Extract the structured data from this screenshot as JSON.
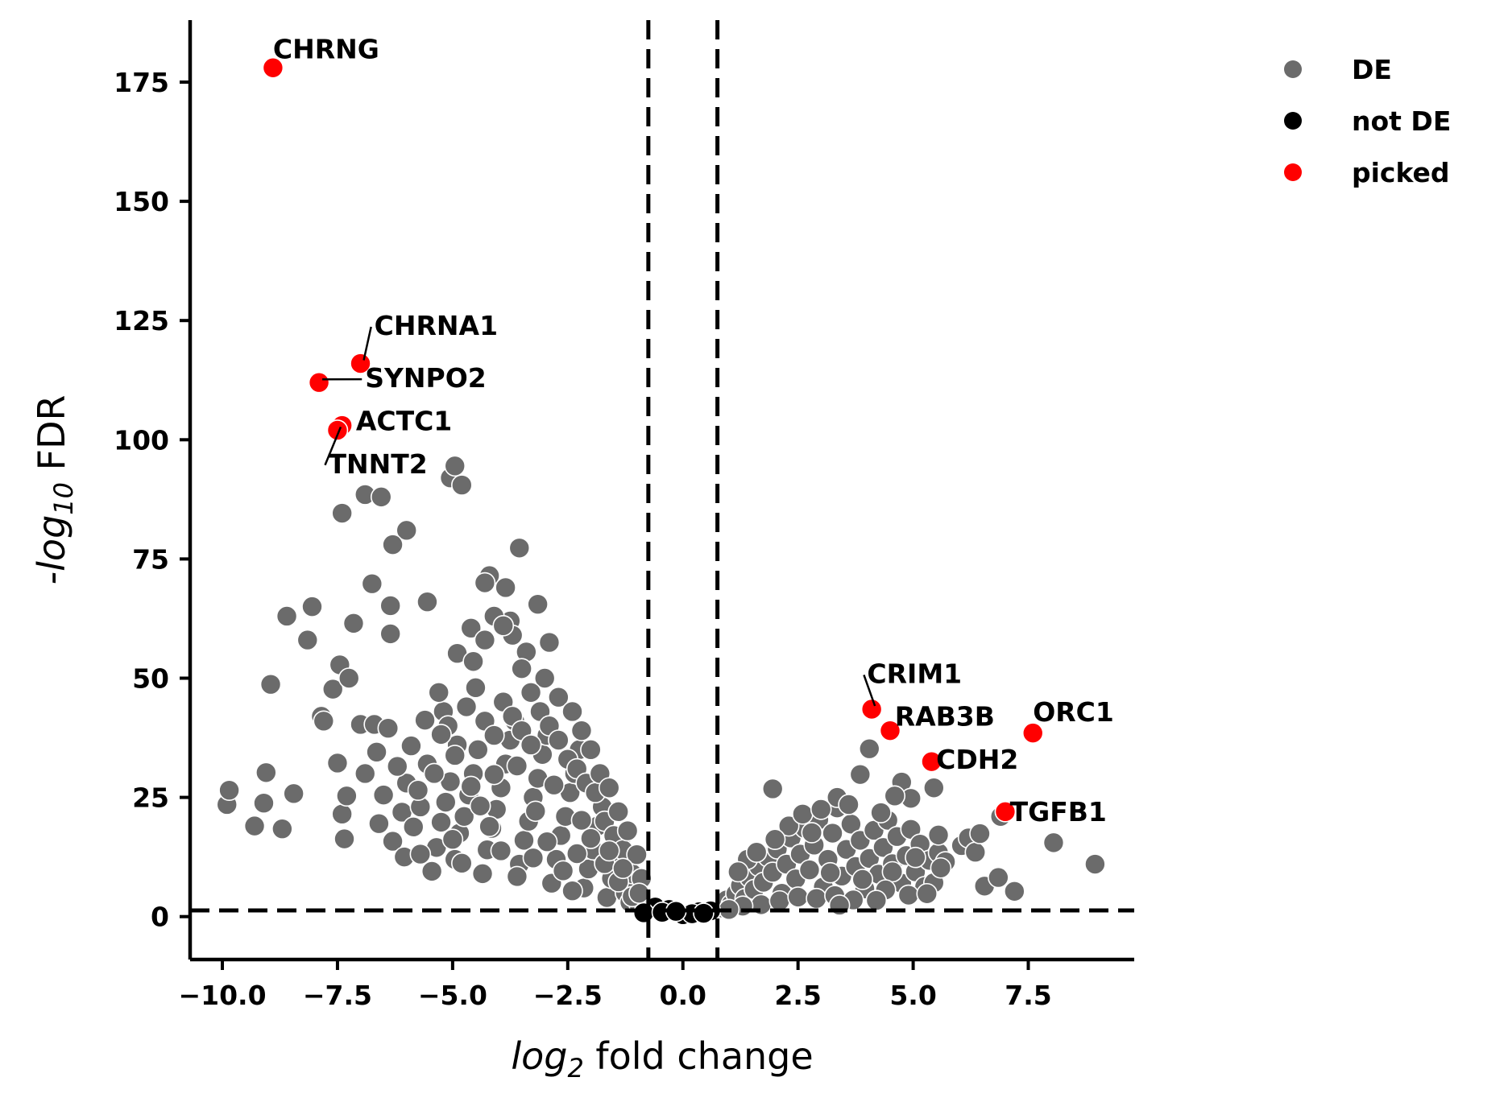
{
  "chart_data": {
    "type": "scatter",
    "title": "",
    "xlabel": {
      "prefix": "log",
      "sub": "2",
      "suffix": " fold change"
    },
    "ylabel": {
      "prefix": "-log",
      "sub": "10",
      "suffix": " FDR"
    },
    "xlim": [
      -10.7,
      9.8
    ],
    "ylim": [
      -9,
      188
    ],
    "x_ticks": [
      -10.0,
      -7.5,
      -5.0,
      -2.5,
      0.0,
      2.5,
      5.0,
      7.5
    ],
    "x_tick_labels": [
      "−10.0",
      "−7.5",
      "−5.0",
      "−2.5",
      "0.0",
      "2.5",
      "5.0",
      "7.5"
    ],
    "y_ticks": [
      0,
      25,
      50,
      75,
      100,
      125,
      150,
      175
    ],
    "y_tick_labels": [
      "0",
      "25",
      "50",
      "75",
      "100",
      "125",
      "150",
      "175"
    ],
    "thresholds": {
      "log2fc": [
        -0.75,
        0.75
      ],
      "neg_log10_fdr": 1.3
    },
    "grid": false,
    "legend_position": "top-right-outside",
    "legend": [
      {
        "label": "DE",
        "color": "#6b6b6b"
      },
      {
        "label": "not DE",
        "color": "#000000"
      },
      {
        "label": "picked",
        "color": "#ff0000"
      }
    ],
    "colors": {
      "DE": "#6b6b6b",
      "not_DE": "#000000",
      "picked": "#ff0000",
      "edge": "#ffffff"
    },
    "picked_genes": [
      {
        "gene": "CHRNG",
        "x": -8.9,
        "y": 178,
        "label_x": -8.9,
        "label_y": 180
      },
      {
        "gene": "CHRNA1",
        "x": -7.0,
        "y": 116,
        "label_x": -6.7,
        "label_y": 122
      },
      {
        "gene": "SYNPO2",
        "x": -7.9,
        "y": 112,
        "label_x": -6.9,
        "label_y": 111
      },
      {
        "gene": "ACTC1",
        "x": -7.4,
        "y": 103,
        "label_x": -7.1,
        "label_y": 102
      },
      {
        "gene": "TNNT2",
        "x": -7.5,
        "y": 102,
        "label_x": -7.7,
        "label_y": 93
      },
      {
        "gene": "CRIM1",
        "x": 4.1,
        "y": 43.5,
        "label_x": 4.0,
        "label_y": 49
      },
      {
        "gene": "RAB3B",
        "x": 4.5,
        "y": 39,
        "label_x": 4.6,
        "label_y": 40
      },
      {
        "gene": "ORC1",
        "x": 7.6,
        "y": 38.5,
        "label_x": 7.6,
        "label_y": 41
      },
      {
        "gene": "CDH2",
        "x": 5.4,
        "y": 32.5,
        "label_x": 5.5,
        "label_y": 31
      },
      {
        "gene": "TGFB1",
        "x": 7.0,
        "y": 22,
        "label_x": 7.1,
        "label_y": 20
      }
    ],
    "not_de_points": [
      [
        -0.6,
        2
      ],
      [
        -0.3,
        1.5
      ],
      [
        0.0,
        0.4
      ],
      [
        0.35,
        1.0
      ],
      [
        -0.85,
        0.8
      ],
      [
        0.6,
        1.2
      ],
      [
        -0.45,
        0.9
      ],
      [
        0.2,
        0.6
      ],
      [
        -0.15,
        1.1
      ],
      [
        0.45,
        0.7
      ]
    ],
    "de_points": [
      [
        -9.9,
        23.5
      ],
      [
        -9.85,
        26.5
      ],
      [
        -9.3,
        19
      ],
      [
        -9.1,
        23.8
      ],
      [
        -9.05,
        30.2
      ],
      [
        -8.7,
        18.4
      ],
      [
        -8.45,
        25.8
      ],
      [
        -8.95,
        48.7
      ],
      [
        -8.6,
        63
      ],
      [
        -8.15,
        58
      ],
      [
        -8.05,
        65
      ],
      [
        -7.85,
        42
      ],
      [
        -7.8,
        41
      ],
      [
        -7.6,
        47.7
      ],
      [
        -7.45,
        52.8
      ],
      [
        -7.25,
        50
      ],
      [
        -7.15,
        61.5
      ],
      [
        -7.5,
        32.2
      ],
      [
        -7.4,
        21.5
      ],
      [
        -7.35,
        16.3
      ],
      [
        -7.3,
        25.3
      ],
      [
        -7.0,
        40.3
      ],
      [
        -6.9,
        30
      ],
      [
        -6.7,
        40.3
      ],
      [
        -6.65,
        34.5
      ],
      [
        -6.4,
        39.5
      ],
      [
        -6.5,
        25.5
      ],
      [
        -6.6,
        19.5
      ],
      [
        -6.3,
        15.8
      ],
      [
        -6.05,
        12.5
      ],
      [
        -6.1,
        21.9
      ],
      [
        -6.0,
        28
      ],
      [
        -5.85,
        18.8
      ],
      [
        -5.7,
        23
      ],
      [
        -5.55,
        32
      ],
      [
        -5.45,
        9.5
      ],
      [
        -5.35,
        14.5
      ],
      [
        -5.25,
        19.8
      ],
      [
        -5.15,
        24
      ],
      [
        -5.05,
        28.3
      ],
      [
        -4.95,
        12
      ],
      [
        -4.85,
        17.5
      ],
      [
        -4.75,
        21
      ],
      [
        -4.65,
        25.5
      ],
      [
        -4.55,
        30
      ],
      [
        -4.45,
        35
      ],
      [
        -4.35,
        9
      ],
      [
        -4.25,
        14
      ],
      [
        -4.15,
        18.5
      ],
      [
        -4.05,
        22.5
      ],
      [
        -3.95,
        27
      ],
      [
        -3.85,
        32
      ],
      [
        -3.75,
        37
      ],
      [
        -3.65,
        41
      ],
      [
        -3.55,
        11
      ],
      [
        -3.45,
        16
      ],
      [
        -3.35,
        20
      ],
      [
        -3.25,
        25
      ],
      [
        -3.15,
        29
      ],
      [
        -3.05,
        34
      ],
      [
        -2.95,
        38
      ],
      [
        -2.85,
        7
      ],
      [
        -2.75,
        12
      ],
      [
        -2.65,
        17
      ],
      [
        -2.55,
        21
      ],
      [
        -2.45,
        26
      ],
      [
        -2.35,
        30
      ],
      [
        -2.25,
        35
      ],
      [
        -2.15,
        6
      ],
      [
        -2.05,
        10
      ],
      [
        -1.95,
        14
      ],
      [
        -1.85,
        19
      ],
      [
        -1.75,
        23
      ],
      [
        -1.65,
        4
      ],
      [
        -1.55,
        8
      ],
      [
        -1.45,
        12
      ],
      [
        -1.35,
        16
      ],
      [
        -1.25,
        5
      ],
      [
        -1.15,
        3
      ],
      [
        -1.05,
        6
      ],
      [
        -0.95,
        2.5
      ],
      [
        -5.2,
        43
      ],
      [
        -5.3,
        47
      ],
      [
        -5.1,
        40
      ],
      [
        -4.9,
        36
      ],
      [
        -4.7,
        44
      ],
      [
        -4.5,
        48
      ],
      [
        -4.3,
        41
      ],
      [
        -4.1,
        38
      ],
      [
        -3.9,
        45
      ],
      [
        -3.7,
        42
      ],
      [
        -3.5,
        39
      ],
      [
        -3.3,
        36
      ],
      [
        -3.1,
        43
      ],
      [
        -2.9,
        40
      ],
      [
        -2.7,
        37
      ],
      [
        -2.5,
        33
      ],
      [
        -2.3,
        31
      ],
      [
        -2.1,
        28
      ],
      [
        -1.9,
        26
      ],
      [
        -1.7,
        20
      ],
      [
        -1.5,
        17
      ],
      [
        -1.3,
        14
      ],
      [
        -1.1,
        9
      ],
      [
        -6.9,
        88.5
      ],
      [
        -6.55,
        88
      ],
      [
        -5.05,
        92
      ],
      [
        -4.95,
        94.5
      ],
      [
        -4.8,
        90.5
      ],
      [
        -7.4,
        84.6
      ],
      [
        -6.0,
        81
      ],
      [
        -6.3,
        78
      ],
      [
        -3.55,
        77.3
      ],
      [
        -3.15,
        65.5
      ],
      [
        -4.2,
        71.5
      ],
      [
        -4.3,
        70
      ],
      [
        -3.85,
        69
      ],
      [
        -3.75,
        62
      ],
      [
        -4.1,
        63
      ],
      [
        -3.7,
        59
      ],
      [
        -3.4,
        55.5
      ],
      [
        -2.9,
        57.5
      ],
      [
        -5.55,
        66
      ],
      [
        -6.75,
        69.8
      ],
      [
        -6.35,
        65.2
      ],
      [
        -6.35,
        59.3
      ],
      [
        -4.9,
        55.2
      ],
      [
        -4.55,
        53.5
      ],
      [
        -3.5,
        52
      ],
      [
        -3.0,
        50
      ],
      [
        -2.7,
        46
      ],
      [
        -2.4,
        43
      ],
      [
        -2.2,
        39
      ],
      [
        -2.0,
        35
      ],
      [
        -1.8,
        30
      ],
      [
        -1.6,
        27
      ],
      [
        -1.4,
        22
      ],
      [
        -1.2,
        18
      ],
      [
        -1.0,
        13
      ],
      [
        -0.9,
        8
      ],
      [
        -4.6,
        60.5
      ],
      [
        -4.3,
        58
      ],
      [
        -3.9,
        61
      ],
      [
        -3.3,
        47
      ],
      [
        -5.6,
        41.2
      ],
      [
        -5.9,
        35.8
      ],
      [
        -6.2,
        31.5
      ],
      [
        -5.4,
        30
      ],
      [
        -5.75,
        26.5
      ],
      [
        -5.25,
        38.2
      ],
      [
        -4.95,
        33.8
      ],
      [
        -4.6,
        27.3
      ],
      [
        -4.4,
        23.2
      ],
      [
        -4.2,
        18.9
      ],
      [
        -3.95,
        13.8
      ],
      [
        -3.6,
        8.4
      ],
      [
        -3.25,
        12.3
      ],
      [
        -2.95,
        15.7
      ],
      [
        -2.6,
        9.6
      ],
      [
        -2.3,
        13.2
      ],
      [
        -2.0,
        16.4
      ],
      [
        -1.7,
        11.1
      ],
      [
        -1.4,
        7.3
      ],
      [
        -1.1,
        4.2
      ],
      [
        -0.95,
        4.9
      ],
      [
        -5.7,
        13.1
      ],
      [
        -5.0,
        16.2
      ],
      [
        -4.1,
        29.8
      ],
      [
        -3.2,
        22.1
      ],
      [
        -2.2,
        20.2
      ],
      [
        -1.6,
        13.8
      ],
      [
        -1.3,
        10.1
      ],
      [
        -2.8,
        27.6
      ],
      [
        -3.6,
        31.6
      ],
      [
        -4.8,
        11.2
      ],
      [
        -2.4,
        5.4
      ],
      [
        0.85,
        1.8
      ],
      [
        0.95,
        3.5
      ],
      [
        1.05,
        2.6
      ],
      [
        1.15,
        4.8
      ],
      [
        1.25,
        6.5
      ],
      [
        1.35,
        3.8
      ],
      [
        1.45,
        8.2
      ],
      [
        1.55,
        5.7
      ],
      [
        1.65,
        10.5
      ],
      [
        1.75,
        7.2
      ],
      [
        1.85,
        12.5
      ],
      [
        1.95,
        9.3
      ],
      [
        2.05,
        14.2
      ],
      [
        2.15,
        4.9
      ],
      [
        2.25,
        11
      ],
      [
        2.35,
        16.5
      ],
      [
        2.45,
        7.9
      ],
      [
        2.55,
        13.1
      ],
      [
        2.65,
        18.5
      ],
      [
        2.75,
        9.8
      ],
      [
        2.85,
        15
      ],
      [
        2.95,
        20.3
      ],
      [
        3.05,
        6.2
      ],
      [
        3.15,
        12
      ],
      [
        3.25,
        17.5
      ],
      [
        3.35,
        22.8
      ],
      [
        3.45,
        8.5
      ],
      [
        3.55,
        14.1
      ],
      [
        3.65,
        19.4
      ],
      [
        3.75,
        10.5
      ],
      [
        3.85,
        16
      ],
      [
        3.95,
        5.8
      ],
      [
        4.05,
        12.2
      ],
      [
        4.15,
        18.1
      ],
      [
        4.25,
        8.9
      ],
      [
        4.35,
        14.5
      ],
      [
        4.45,
        20.2
      ],
      [
        4.55,
        11.1
      ],
      [
        4.65,
        16.8
      ],
      [
        4.75,
        7
      ],
      [
        4.85,
        12.8
      ],
      [
        4.95,
        18.3
      ],
      [
        5.05,
        9.4
      ],
      [
        5.15,
        15.2
      ],
      [
        5.25,
        6.3
      ],
      [
        5.35,
        11.8
      ],
      [
        5.45,
        7.1
      ],
      [
        5.55,
        13.4
      ],
      [
        1.95,
        26.8
      ],
      [
        3.35,
        25
      ],
      [
        3.85,
        29.8
      ],
      [
        4.05,
        35.2
      ],
      [
        4.75,
        28.2
      ],
      [
        4.95,
        24.8
      ],
      [
        5.45,
        27
      ],
      [
        5.55,
        17.1
      ],
      [
        5.7,
        11.5
      ],
      [
        6.05,
        14.9
      ],
      [
        6.2,
        16.5
      ],
      [
        6.35,
        13.5
      ],
      [
        6.45,
        17.4
      ],
      [
        6.55,
        6.4
      ],
      [
        6.85,
        8.2
      ],
      [
        6.9,
        21
      ],
      [
        7.2,
        5.3
      ],
      [
        8.05,
        15.5
      ],
      [
        8.95,
        11
      ],
      [
        4.9,
        4.5
      ],
      [
        5.05,
        12.4
      ],
      [
        4.55,
        9.4
      ],
      [
        1.7,
        2.5
      ],
      [
        2.1,
        3.3
      ],
      [
        2.5,
        4.1
      ],
      [
        2.9,
        3.8
      ],
      [
        3.3,
        4.4
      ],
      [
        3.7,
        3.5
      ],
      [
        1.3,
        2.2
      ],
      [
        1.0,
        1.5
      ],
      [
        2.3,
        19
      ],
      [
        2.6,
        21.5
      ],
      [
        3.0,
        22.5
      ],
      [
        3.6,
        23.5
      ],
      [
        4.3,
        21.8
      ],
      [
        4.6,
        25.3
      ],
      [
        1.4,
        12
      ],
      [
        1.2,
        9.4
      ],
      [
        1.6,
        13.5
      ],
      [
        2.0,
        16.2
      ],
      [
        2.8,
        17.6
      ],
      [
        3.2,
        9.2
      ],
      [
        3.9,
        7.8
      ],
      [
        4.4,
        5.6
      ],
      [
        5.3,
        4.8
      ],
      [
        5.6,
        10.2
      ],
      [
        4.2,
        3.4
      ],
      [
        3.4,
        2.4
      ]
    ]
  }
}
